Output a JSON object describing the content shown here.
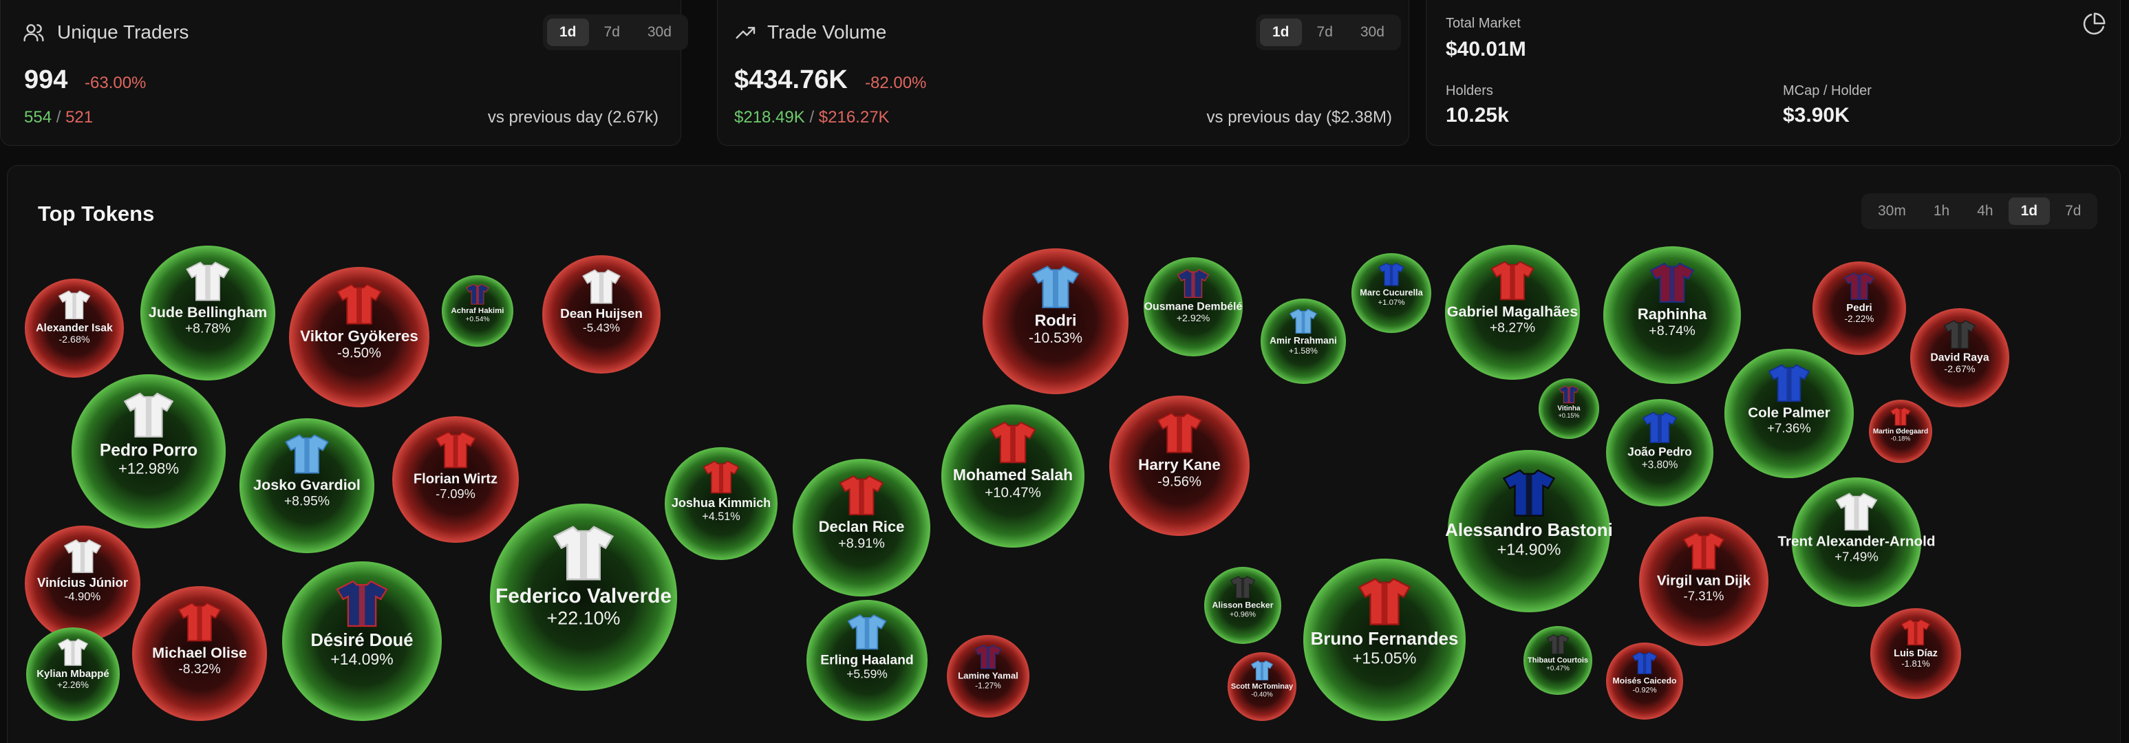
{
  "traders": {
    "title": "Unique Traders",
    "icon": "users-icon",
    "ranges": [
      "1d",
      "7d",
      "30d"
    ],
    "active_range": "1d",
    "value": "994",
    "change": "-63.00%",
    "buys": "554",
    "separator": "/",
    "sells": "521",
    "comparison": "vs previous day (2.67k)"
  },
  "volume": {
    "title": "Trade Volume",
    "icon": "trending-up-icon",
    "ranges": [
      "1d",
      "7d",
      "30d"
    ],
    "active_range": "1d",
    "value": "$434.76K",
    "change": "-82.00%",
    "buys": "$218.49K",
    "separator": "/",
    "sells": "$216.27K",
    "comparison": "vs previous day ($2.38M)"
  },
  "market": {
    "label": "Total Market",
    "value": "$40.01M",
    "holders_label": "Holders",
    "holders_value": "10.25k",
    "mcap_label": "MCap / Holder",
    "mcap_value": "$3.90K",
    "icon": "pie-chart-icon"
  },
  "top_tokens": {
    "title": "Top Tokens",
    "ranges": [
      "30m",
      "1h",
      "4h",
      "1d",
      "7d"
    ],
    "active_range": "1d",
    "colors": {
      "positive": "#3f9a32",
      "negative": "#b52a25"
    },
    "tokens": [
      {
        "name": "Alexander Isak",
        "change": "-2.68%",
        "value": -2.68,
        "shirt": "white"
      },
      {
        "name": "Jude Bellingham",
        "change": "+8.78%",
        "value": 8.78,
        "shirt": "white"
      },
      {
        "name": "Viktor Gyökeres",
        "change": "-9.50%",
        "value": -9.5,
        "shirt": "red"
      },
      {
        "name": "Achraf Hakimi",
        "change": "+0.54%",
        "value": 0.54,
        "shirt": "navy-red"
      },
      {
        "name": "Dean Huijsen",
        "change": "-5.43%",
        "value": -5.43,
        "shirt": "white"
      },
      {
        "name": "Pedro Porro",
        "change": "+12.98%",
        "value": 12.98,
        "shirt": "white"
      },
      {
        "name": "Josko Gvardiol",
        "change": "+8.95%",
        "value": 8.95,
        "shirt": "sky"
      },
      {
        "name": "Florian Wirtz",
        "change": "-7.09%",
        "value": -7.09,
        "shirt": "red"
      },
      {
        "name": "Vinícius Júnior",
        "change": "-4.90%",
        "value": -4.9,
        "shirt": "white"
      },
      {
        "name": "Kylian Mbappé",
        "change": "+2.26%",
        "value": 2.26,
        "shirt": "white"
      },
      {
        "name": "Michael Olise",
        "change": "-8.32%",
        "value": -8.32,
        "shirt": "red"
      },
      {
        "name": "Désiré Doué",
        "change": "+14.09%",
        "value": 14.09,
        "shirt": "navy-red"
      },
      {
        "name": "Federico Valverde",
        "change": "+22.10%",
        "value": 22.1,
        "shirt": "white"
      },
      {
        "name": "Joshua Kimmich",
        "change": "+4.51%",
        "value": 4.51,
        "shirt": "red"
      },
      {
        "name": "Declan Rice",
        "change": "+8.91%",
        "value": 8.91,
        "shirt": "red"
      },
      {
        "name": "Erling Haaland",
        "change": "+5.59%",
        "value": 5.59,
        "shirt": "sky"
      },
      {
        "name": "Lamine Yamal",
        "change": "-1.27%",
        "value": -1.27,
        "shirt": "blaugrana"
      },
      {
        "name": "Mohamed Salah",
        "change": "+10.47%",
        "value": 10.47,
        "shirt": "red"
      },
      {
        "name": "Rodri",
        "change": "-10.53%",
        "value": -10.53,
        "shirt": "sky"
      },
      {
        "name": "Harry Kane",
        "change": "-9.56%",
        "value": -9.56,
        "shirt": "red"
      },
      {
        "name": "Ousmane Dembélé",
        "change": "+2.92%",
        "value": 2.92,
        "shirt": "navy-red"
      },
      {
        "name": "Amir Rrahmani",
        "change": "+1.58%",
        "value": 1.58,
        "shirt": "sky"
      },
      {
        "name": "Marc Cucurella",
        "change": "+1.07%",
        "value": 1.07,
        "shirt": "blue"
      },
      {
        "name": "Alisson Becker",
        "change": "+0.96%",
        "value": 0.96,
        "shirt": "dark"
      },
      {
        "name": "Scott McTominay",
        "change": "-0.40%",
        "value": -0.4,
        "shirt": "sky"
      },
      {
        "name": "Bruno Fernandes",
        "change": "+15.05%",
        "value": 15.05,
        "shirt": "red"
      },
      {
        "name": "Gabriel Magalhães",
        "change": "+8.27%",
        "value": 8.27,
        "shirt": "red"
      },
      {
        "name": "Vitinha",
        "change": "+0.15%",
        "value": 0.15,
        "shirt": "navy-red"
      },
      {
        "name": "Alessandro Bastoni",
        "change": "+14.90%",
        "value": 14.9,
        "shirt": "inter"
      },
      {
        "name": "Thibaut Courtois",
        "change": "+0.47%",
        "value": 0.47,
        "shirt": "dark"
      },
      {
        "name": "Raphinha",
        "change": "+8.74%",
        "value": 8.74,
        "shirt": "blaugrana"
      },
      {
        "name": "João Pedro",
        "change": "+3.80%",
        "value": 3.8,
        "shirt": "blue"
      },
      {
        "name": "Virgil van Dijk",
        "change": "-7.31%",
        "value": -7.31,
        "shirt": "red"
      },
      {
        "name": "Moisés Caicedo",
        "change": "-0.92%",
        "value": -0.92,
        "shirt": "blue"
      },
      {
        "name": "Cole Palmer",
        "change": "+7.36%",
        "value": 7.36,
        "shirt": "blue"
      },
      {
        "name": "Pedri",
        "change": "-2.22%",
        "value": -2.22,
        "shirt": "blaugrana"
      },
      {
        "name": "David Raya",
        "change": "-2.67%",
        "value": -2.67,
        "shirt": "dark"
      },
      {
        "name": "Martin Ødegaard",
        "change": "-0.18%",
        "value": -0.18,
        "shirt": "red"
      },
      {
        "name": "Trent Alexander-Arnold",
        "change": "+7.49%",
        "value": 7.49,
        "shirt": "white"
      },
      {
        "name": "Luis Díaz",
        "change": "-1.81%",
        "value": -1.81,
        "shirt": "red"
      }
    ]
  }
}
